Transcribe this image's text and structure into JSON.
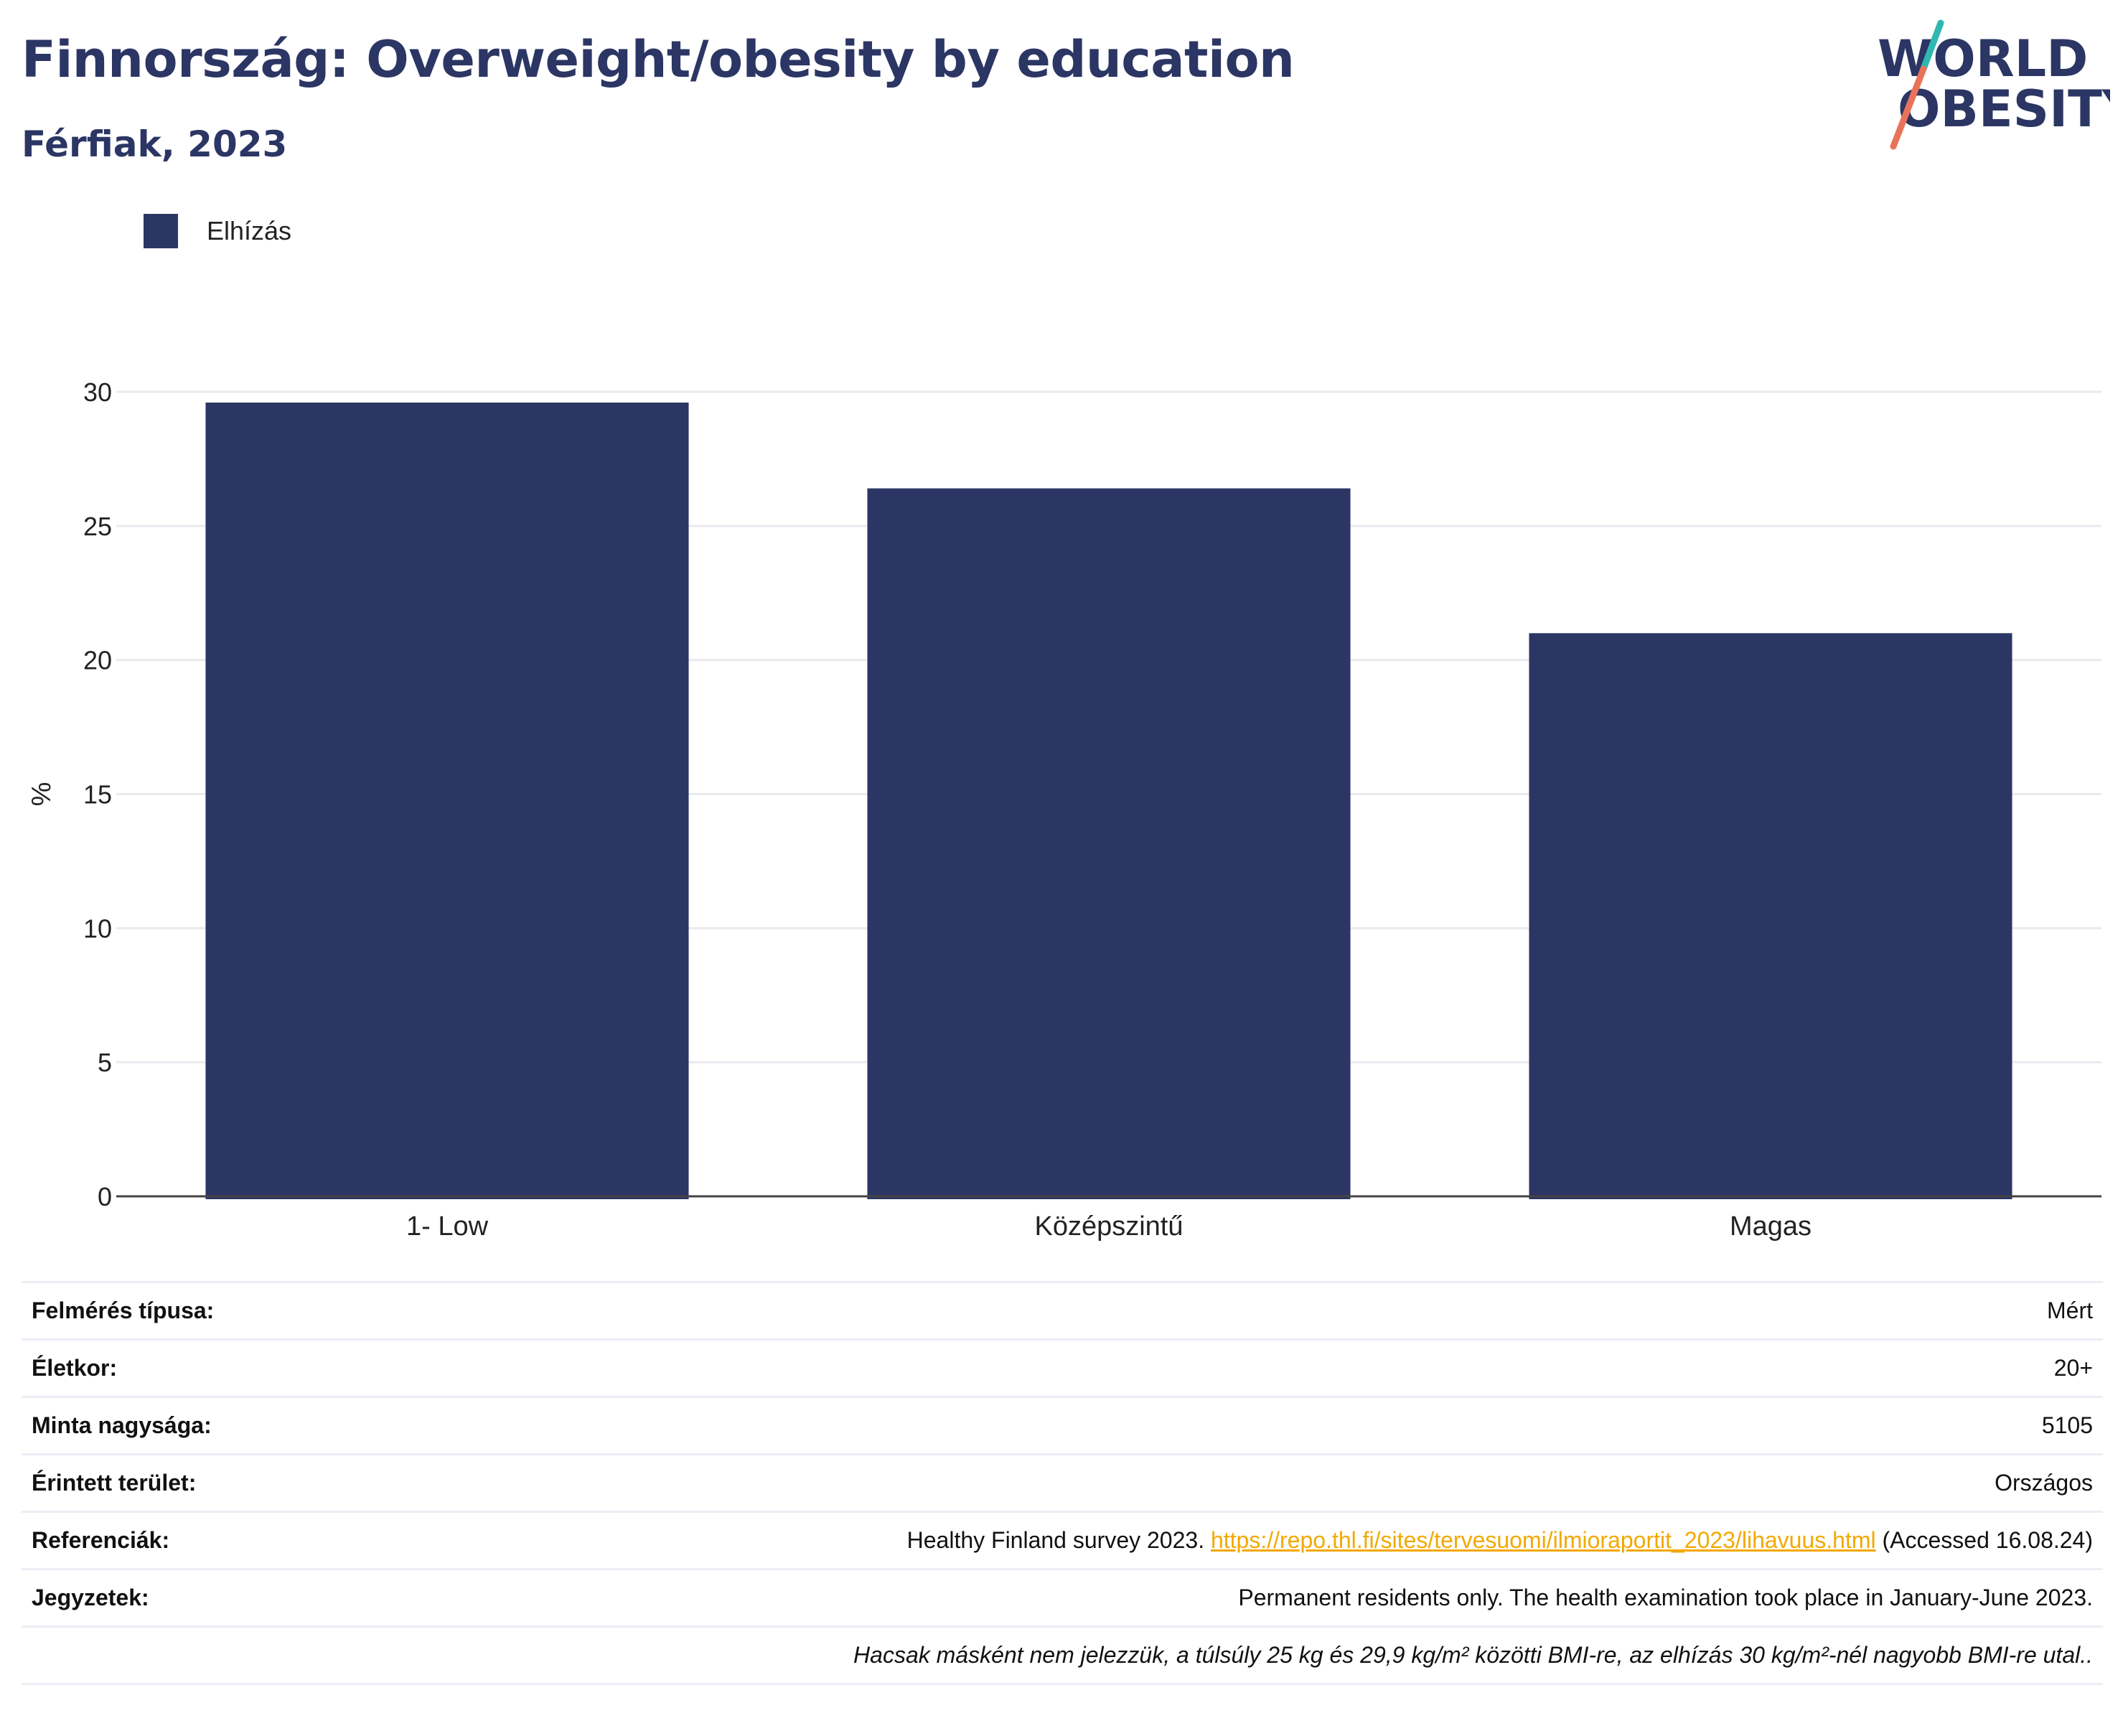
{
  "header": {
    "title": "Finnország: Overweight/obesity by education",
    "subtitle": "Férfiak, 2023"
  },
  "logo": {
    "line1": "WORLD",
    "line2": "OBESITY",
    "slash_colors": [
      "#2fb7b3",
      "#e8735a"
    ]
  },
  "colors": {
    "bar": "#2b3664",
    "title": "#2b3664",
    "link": "#f2a900",
    "grid": "#e9e9ef"
  },
  "chart_data": {
    "type": "bar",
    "categories": [
      "1- Low",
      "Középszintű",
      "Magas"
    ],
    "series": [
      {
        "name": "Elhízás",
        "values": [
          29.6,
          26.4,
          21.0
        ]
      }
    ],
    "xlabel": "",
    "ylabel": "%",
    "ylim": [
      0,
      30
    ],
    "yticks": [
      0,
      5,
      10,
      15,
      20,
      25,
      30
    ],
    "grid": true,
    "legend": "top-left"
  },
  "info": {
    "rows": [
      {
        "label": "Felmérés típusa:",
        "value": "Mért"
      },
      {
        "label": "Életkor:",
        "value": "20+"
      },
      {
        "label": "Minta nagysága:",
        "value": "5105"
      },
      {
        "label": "Érintett terület:",
        "value": "Országos"
      }
    ],
    "references": {
      "label": "Referenciák:",
      "prefix": "Healthy Finland survey 2023. ",
      "link": "https://repo.thl.fi/sites/tervesuomi/ilmioraportit_2023/lihavuus.html",
      "suffix": " (Accessed 16.08.24)"
    },
    "notes": {
      "label": "Jegyzetek:",
      "value": "Permanent residents only. The health examination took place in January-June 2023."
    },
    "footnote": "Hacsak másként nem jelezzük, a túlsúly 25 kg és 29,9 kg/m² közötti BMI-re, az elhízás 30 kg/m²-nél nagyobb BMI-re utal.."
  }
}
